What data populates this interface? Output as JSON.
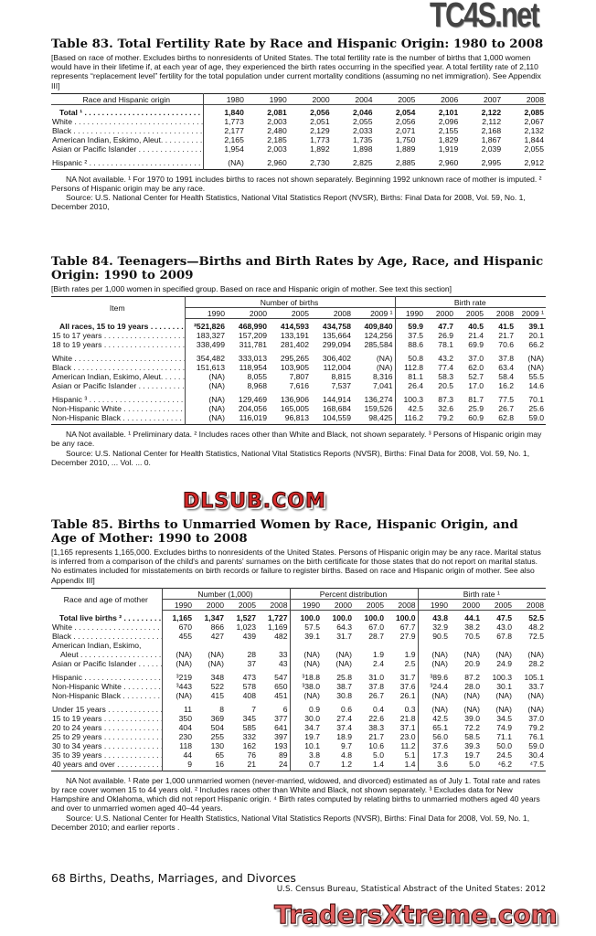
{
  "watermarks": {
    "top_right": "TC4S.net",
    "middle": "DLSUB.COM",
    "bottom": "TradersXtreme.com"
  },
  "table83": {
    "title": "Table 83. Total Fertility Rate by Race and Hispanic Origin: 1980 to 2008",
    "headnote": "[Based on race of mother. Excludes births to nonresidents of United States. The total fertility rate is the number of births that 1,000 women would have in their lifetime if, at each year of age, they experienced the birth rates occurring in the specified year. A total fertility rate of 2,110 represents “replacement level” fertility for the total population under current mortality conditions (assuming no net immigration). See Appendix III]",
    "label_header": "Race and Hispanic origin",
    "columns": [
      "1980",
      "1990",
      "2000",
      "2004",
      "2005",
      "2006",
      "2007",
      "2008"
    ],
    "rows": [
      {
        "label": "Total ¹",
        "bold": true,
        "cells": [
          "1,840",
          "2,081",
          "2,056",
          "2,046",
          "2,054",
          "2,101",
          "2,122",
          "2,085"
        ]
      },
      {
        "label": "White",
        "cells": [
          "1,773",
          "2,003",
          "2,051",
          "2,055",
          "2,056",
          "2,096",
          "2,112",
          "2,067"
        ]
      },
      {
        "label": "Black",
        "cells": [
          "2,177",
          "2,480",
          "2,129",
          "2,033",
          "2,071",
          "2,155",
          "2,168",
          "2,132"
        ]
      },
      {
        "label": "American Indian, Eskimo, Aleut.",
        "cells": [
          "2,165",
          "2,185",
          "1,773",
          "1,735",
          "1,750",
          "1,829",
          "1,867",
          "1,844"
        ]
      },
      {
        "label": "Asian or Pacific Islander",
        "cells": [
          "1,954",
          "2,003",
          "1,892",
          "1,898",
          "1,889",
          "1,919",
          "2,039",
          "2,055"
        ]
      },
      {
        "label": "Hispanic ²",
        "gap": true,
        "cells": [
          "(NA)",
          "2,960",
          "2,730",
          "2,825",
          "2,885",
          "2,960",
          "2,995",
          "2,912"
        ]
      }
    ],
    "notes": [
      "NA Not available. ¹ For 1970 to 1991 includes births to races not shown separately. Beginning 1992 unknown race of mother is imputed. ² Persons of Hispanic origin may be any race.",
      "Source: U.S. National Center for Health Statistics, National Vital Statistics Report (NVSR), Births: Final Data for 2008, Vol. 59, No. 1, December 2010,"
    ]
  },
  "table84": {
    "title": "Table 84. Teenagers—Births and Birth Rates by Age, Race, and Hispanic Origin: 1990 to 2009",
    "headnote": "[Birth rates per 1,000 women in specified group. Based on race and Hispanic origin of mother. See text this section]",
    "label_header": "Item",
    "groups": [
      "Number of births",
      "Birth rate"
    ],
    "columns": [
      "1990",
      "2000",
      "2005",
      "2008",
      "2009 ¹",
      "1990",
      "2000",
      "2005",
      "2008",
      "2009 ¹"
    ],
    "rows": [
      {
        "label": "All races, 15 to 19 years",
        "bold": true,
        "cells": [
          "²521,826",
          "468,990",
          "414,593",
          "434,758",
          "409,840",
          "59.9",
          "47.7",
          "40.5",
          "41.5",
          "39.1"
        ]
      },
      {
        "label": "15 to 17 years",
        "cells": [
          "183,327",
          "157,209",
          "133,191",
          "135,664",
          "124,256",
          "37.5",
          "26.9",
          "21.4",
          "21.7",
          "20.1"
        ]
      },
      {
        "label": "18 to 19 years",
        "cells": [
          "338,499",
          "311,781",
          "281,402",
          "299,094",
          "285,584",
          "88.6",
          "78.1",
          "69.9",
          "70.6",
          "66.2"
        ]
      },
      {
        "label": "White",
        "gap": true,
        "cells": [
          "354,482",
          "333,013",
          "295,265",
          "306,402",
          "(NA)",
          "50.8",
          "43.2",
          "37.0",
          "37.8",
          "(NA)"
        ]
      },
      {
        "label": "Black",
        "cells": [
          "151,613",
          "118,954",
          "103,905",
          "112,004",
          "(NA)",
          "112.8",
          "77.4",
          "62.0",
          "63.4",
          "(NA)"
        ]
      },
      {
        "label": "American Indian, Eskimo, Aleut.",
        "cells": [
          "(NA)",
          "8,055",
          "7,807",
          "8,815",
          "8,316",
          "81.1",
          "58.3",
          "52.7",
          "58.4",
          "55.5"
        ]
      },
      {
        "label": "Asian or Pacific Islander",
        "cells": [
          "(NA)",
          "8,968",
          "7,616",
          "7,537",
          "7,041",
          "26.4",
          "20.5",
          "17.0",
          "16.2",
          "14.6"
        ]
      },
      {
        "label": "Hispanic ³",
        "gap": true,
        "cells": [
          "(NA)",
          "129,469",
          "136,906",
          "144,914",
          "136,274",
          "100.3",
          "87.3",
          "81.7",
          "77.5",
          "70.1"
        ]
      },
      {
        "label": "Non-Hispanic White",
        "cells": [
          "(NA)",
          "204,056",
          "165,005",
          "168,684",
          "159,526",
          "42.5",
          "32.6",
          "25.9",
          "26.7",
          "25.6"
        ]
      },
      {
        "label": "Non-Hispanic Black",
        "cells": [
          "(NA)",
          "116,019",
          "96,813",
          "104,559",
          "98,425",
          "116.2",
          "79.2",
          "60.9",
          "62.8",
          "59.0"
        ]
      }
    ],
    "notes": [
      "NA Not available. ¹ Preliminary data. ² Includes races other than White and Black, not shown separately. ³ Persons of Hispanic origin may be any race.",
      "Source: U.S. National Center for Health Statistics, National Vital Statistics Reports (NVSR), Births: Final Data for 2008, Vol. 59, No. 1, December 2010, ... Vol. ... 0."
    ]
  },
  "table85": {
    "title": "Table 85. Births to Unmarried Women by Race, Hispanic Origin, and Age of Mother: 1990 to 2008",
    "headnote": "[1,165 represents 1,165,000. Excludes births to nonresidents of the United States. Persons of Hispanic origin may be any race. Marital status is inferred from a comparison of the child's and parents' surnames on the birth certificate for those states that do not report on marital status. No estimates included for misstatements on birth records or failure to register births. Based on race and Hispanic origin of mother. See also Appendix III]",
    "label_header": "Race and age of mother",
    "groups": [
      "Number (1,000)",
      "Percent distribution",
      "Birth rate ¹"
    ],
    "columns": [
      "1990",
      "2000",
      "2005",
      "2008",
      "1990",
      "2000",
      "2005",
      "2008",
      "1990",
      "2000",
      "2005",
      "2008"
    ],
    "rows": [
      {
        "label": "Total live births ²",
        "bold": true,
        "cells": [
          "1,165",
          "1,347",
          "1,527",
          "1,727",
          "100.0",
          "100.0",
          "100.0",
          "100.0",
          "43.8",
          "44.1",
          "47.5",
          "52.5"
        ]
      },
      {
        "label": "White",
        "cells": [
          "670",
          "866",
          "1,023",
          "1,169",
          "57.5",
          "64.3",
          "67.0",
          "67.7",
          "32.9",
          "38.2",
          "43.0",
          "48.2"
        ]
      },
      {
        "label": "Black",
        "cells": [
          "455",
          "427",
          "439",
          "482",
          "39.1",
          "31.7",
          "28.7",
          "27.9",
          "90.5",
          "70.5",
          "67.8",
          "72.5"
        ]
      },
      {
        "label": "American Indian, Eskimo,",
        "nodots": true,
        "cells": [
          "",
          "",
          "",
          "",
          "",
          "",
          "",
          "",
          "",
          "",
          "",
          ""
        ]
      },
      {
        "label": "  Aleut",
        "cells": [
          "(NA)",
          "(NA)",
          "28",
          "33",
          "(NA)",
          "(NA)",
          "1.9",
          "1.9",
          "(NA)",
          "(NA)",
          "(NA)",
          "(NA)"
        ]
      },
      {
        "label": "Asian or Pacific Islander",
        "cells": [
          "(NA)",
          "(NA)",
          "37",
          "43",
          "(NA)",
          "(NA)",
          "2.4",
          "2.5",
          "(NA)",
          "20.9",
          "24.9",
          "28.2"
        ]
      },
      {
        "label": "Hispanic",
        "gap": true,
        "cells": [
          "³219",
          "348",
          "473",
          "547",
          "³18.8",
          "25.8",
          "31.0",
          "31.7",
          "³89.6",
          "87.2",
          "100.3",
          "105.1"
        ]
      },
      {
        "label": "Non-Hispanic White",
        "cells": [
          "³443",
          "522",
          "578",
          "650",
          "³38.0",
          "38.7",
          "37.8",
          "37.6",
          "³24.4",
          "28.0",
          "30.1",
          "33.7"
        ]
      },
      {
        "label": "Non-Hispanic Black",
        "cells": [
          "(NA)",
          "415",
          "408",
          "451",
          "(NA)",
          "30.8",
          "26.7",
          "26.1",
          "(NA)",
          "(NA)",
          "(NA)",
          "(NA)"
        ]
      },
      {
        "label": "Under 15 years",
        "gap": true,
        "cells": [
          "11",
          "8",
          "7",
          "6",
          "0.9",
          "0.6",
          "0.4",
          "0.3",
          "(NA)",
          "(NA)",
          "(NA)",
          "(NA)"
        ]
      },
      {
        "label": "15 to 19 years",
        "cells": [
          "350",
          "369",
          "345",
          "377",
          "30.0",
          "27.4",
          "22.6",
          "21.8",
          "42.5",
          "39.0",
          "34.5",
          "37.0"
        ]
      },
      {
        "label": "20 to 24 years",
        "cells": [
          "404",
          "504",
          "585",
          "641",
          "34.7",
          "37.4",
          "38.3",
          "37.1",
          "65.1",
          "72.2",
          "74.9",
          "79.2"
        ]
      },
      {
        "label": "25 to 29 years",
        "cells": [
          "230",
          "255",
          "332",
          "397",
          "19.7",
          "18.9",
          "21.7",
          "23.0",
          "56.0",
          "58.5",
          "71.1",
          "76.1"
        ]
      },
      {
        "label": "30 to 34 years",
        "cells": [
          "118",
          "130",
          "162",
          "193",
          "10.1",
          "9.7",
          "10.6",
          "11.2",
          "37.6",
          "39.3",
          "50.0",
          "59.0"
        ]
      },
      {
        "label": "35 to 39 years",
        "cells": [
          "44",
          "65",
          "76",
          "89",
          "3.8",
          "4.8",
          "5.0",
          "5.1",
          "17.3",
          "19.7",
          "24.5",
          "30.4"
        ]
      },
      {
        "label": "40 years and over",
        "cells": [
          "9",
          "16",
          "21",
          "24",
          "0.7",
          "1.2",
          "1.4",
          "1.4",
          "3.6",
          "5.0",
          "⁴6.2",
          "⁴7.5"
        ]
      }
    ],
    "notes": [
      "NA Not available. ¹ Rate per 1,000 unmarried women (never-married, widowed, and divorced) estimated as of July 1. Total rate and rates by race cover women 15 to 44 years old. ² Includes races other than White and Black, not shown separately. ³ Excludes data for New Hampshire and Oklahoma, which did not report Hispanic origin. ⁴ Birth rates computed by relating births to unmarried mothers aged 40 years and over to unmarried women aged 40–44 years.",
      "Source: U.S. National Center for Health Statistics, National Vital Statistics Reports (NVSR), Births: Final Data for 2008, Vol. 59, No. 1, December 2010; and earlier reports ."
    ]
  },
  "footer": {
    "page_title": "68  Births, Deaths, Marriages, and Divorces",
    "publication": "U.S. Census Bureau, Statistical Abstract of the United States: 2012"
  }
}
